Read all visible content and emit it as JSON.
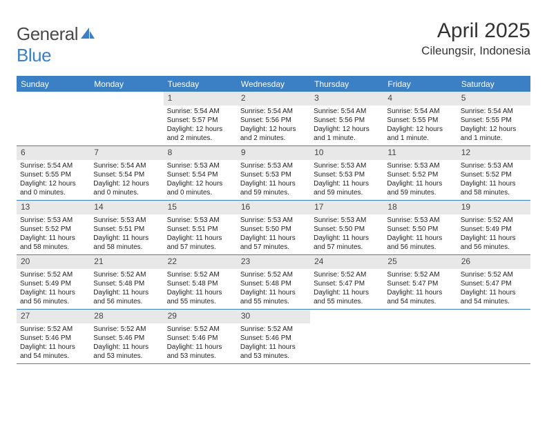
{
  "logo": {
    "text_general": "General",
    "text_blue": "Blue"
  },
  "title": "April 2025",
  "location": "Cileungsir, Indonesia",
  "colors": {
    "accent": "#3b7fc4",
    "header_bg": "#e8e8e8",
    "text": "#222222",
    "background": "#ffffff"
  },
  "weekdays": [
    "Sunday",
    "Monday",
    "Tuesday",
    "Wednesday",
    "Thursday",
    "Friday",
    "Saturday"
  ],
  "calendar": {
    "blank_leading": 2,
    "days": [
      {
        "n": "1",
        "sunrise": "5:54 AM",
        "sunset": "5:57 PM",
        "daylight": "12 hours and 2 minutes."
      },
      {
        "n": "2",
        "sunrise": "5:54 AM",
        "sunset": "5:56 PM",
        "daylight": "12 hours and 2 minutes."
      },
      {
        "n": "3",
        "sunrise": "5:54 AM",
        "sunset": "5:56 PM",
        "daylight": "12 hours and 1 minute."
      },
      {
        "n": "4",
        "sunrise": "5:54 AM",
        "sunset": "5:55 PM",
        "daylight": "12 hours and 1 minute."
      },
      {
        "n": "5",
        "sunrise": "5:54 AM",
        "sunset": "5:55 PM",
        "daylight": "12 hours and 1 minute."
      },
      {
        "n": "6",
        "sunrise": "5:54 AM",
        "sunset": "5:55 PM",
        "daylight": "12 hours and 0 minutes."
      },
      {
        "n": "7",
        "sunrise": "5:54 AM",
        "sunset": "5:54 PM",
        "daylight": "12 hours and 0 minutes."
      },
      {
        "n": "8",
        "sunrise": "5:53 AM",
        "sunset": "5:54 PM",
        "daylight": "12 hours and 0 minutes."
      },
      {
        "n": "9",
        "sunrise": "5:53 AM",
        "sunset": "5:53 PM",
        "daylight": "11 hours and 59 minutes."
      },
      {
        "n": "10",
        "sunrise": "5:53 AM",
        "sunset": "5:53 PM",
        "daylight": "11 hours and 59 minutes."
      },
      {
        "n": "11",
        "sunrise": "5:53 AM",
        "sunset": "5:52 PM",
        "daylight": "11 hours and 59 minutes."
      },
      {
        "n": "12",
        "sunrise": "5:53 AM",
        "sunset": "5:52 PM",
        "daylight": "11 hours and 58 minutes."
      },
      {
        "n": "13",
        "sunrise": "5:53 AM",
        "sunset": "5:52 PM",
        "daylight": "11 hours and 58 minutes."
      },
      {
        "n": "14",
        "sunrise": "5:53 AM",
        "sunset": "5:51 PM",
        "daylight": "11 hours and 58 minutes."
      },
      {
        "n": "15",
        "sunrise": "5:53 AM",
        "sunset": "5:51 PM",
        "daylight": "11 hours and 57 minutes."
      },
      {
        "n": "16",
        "sunrise": "5:53 AM",
        "sunset": "5:50 PM",
        "daylight": "11 hours and 57 minutes."
      },
      {
        "n": "17",
        "sunrise": "5:53 AM",
        "sunset": "5:50 PM",
        "daylight": "11 hours and 57 minutes."
      },
      {
        "n": "18",
        "sunrise": "5:53 AM",
        "sunset": "5:50 PM",
        "daylight": "11 hours and 56 minutes."
      },
      {
        "n": "19",
        "sunrise": "5:52 AM",
        "sunset": "5:49 PM",
        "daylight": "11 hours and 56 minutes."
      },
      {
        "n": "20",
        "sunrise": "5:52 AM",
        "sunset": "5:49 PM",
        "daylight": "11 hours and 56 minutes."
      },
      {
        "n": "21",
        "sunrise": "5:52 AM",
        "sunset": "5:48 PM",
        "daylight": "11 hours and 56 minutes."
      },
      {
        "n": "22",
        "sunrise": "5:52 AM",
        "sunset": "5:48 PM",
        "daylight": "11 hours and 55 minutes."
      },
      {
        "n": "23",
        "sunrise": "5:52 AM",
        "sunset": "5:48 PM",
        "daylight": "11 hours and 55 minutes."
      },
      {
        "n": "24",
        "sunrise": "5:52 AM",
        "sunset": "5:47 PM",
        "daylight": "11 hours and 55 minutes."
      },
      {
        "n": "25",
        "sunrise": "5:52 AM",
        "sunset": "5:47 PM",
        "daylight": "11 hours and 54 minutes."
      },
      {
        "n": "26",
        "sunrise": "5:52 AM",
        "sunset": "5:47 PM",
        "daylight": "11 hours and 54 minutes."
      },
      {
        "n": "27",
        "sunrise": "5:52 AM",
        "sunset": "5:46 PM",
        "daylight": "11 hours and 54 minutes."
      },
      {
        "n": "28",
        "sunrise": "5:52 AM",
        "sunset": "5:46 PM",
        "daylight": "11 hours and 53 minutes."
      },
      {
        "n": "29",
        "sunrise": "5:52 AM",
        "sunset": "5:46 PM",
        "daylight": "11 hours and 53 minutes."
      },
      {
        "n": "30",
        "sunrise": "5:52 AM",
        "sunset": "5:46 PM",
        "daylight": "11 hours and 53 minutes."
      }
    ]
  },
  "labels": {
    "sunrise": "Sunrise:",
    "sunset": "Sunset:",
    "daylight": "Daylight:"
  }
}
